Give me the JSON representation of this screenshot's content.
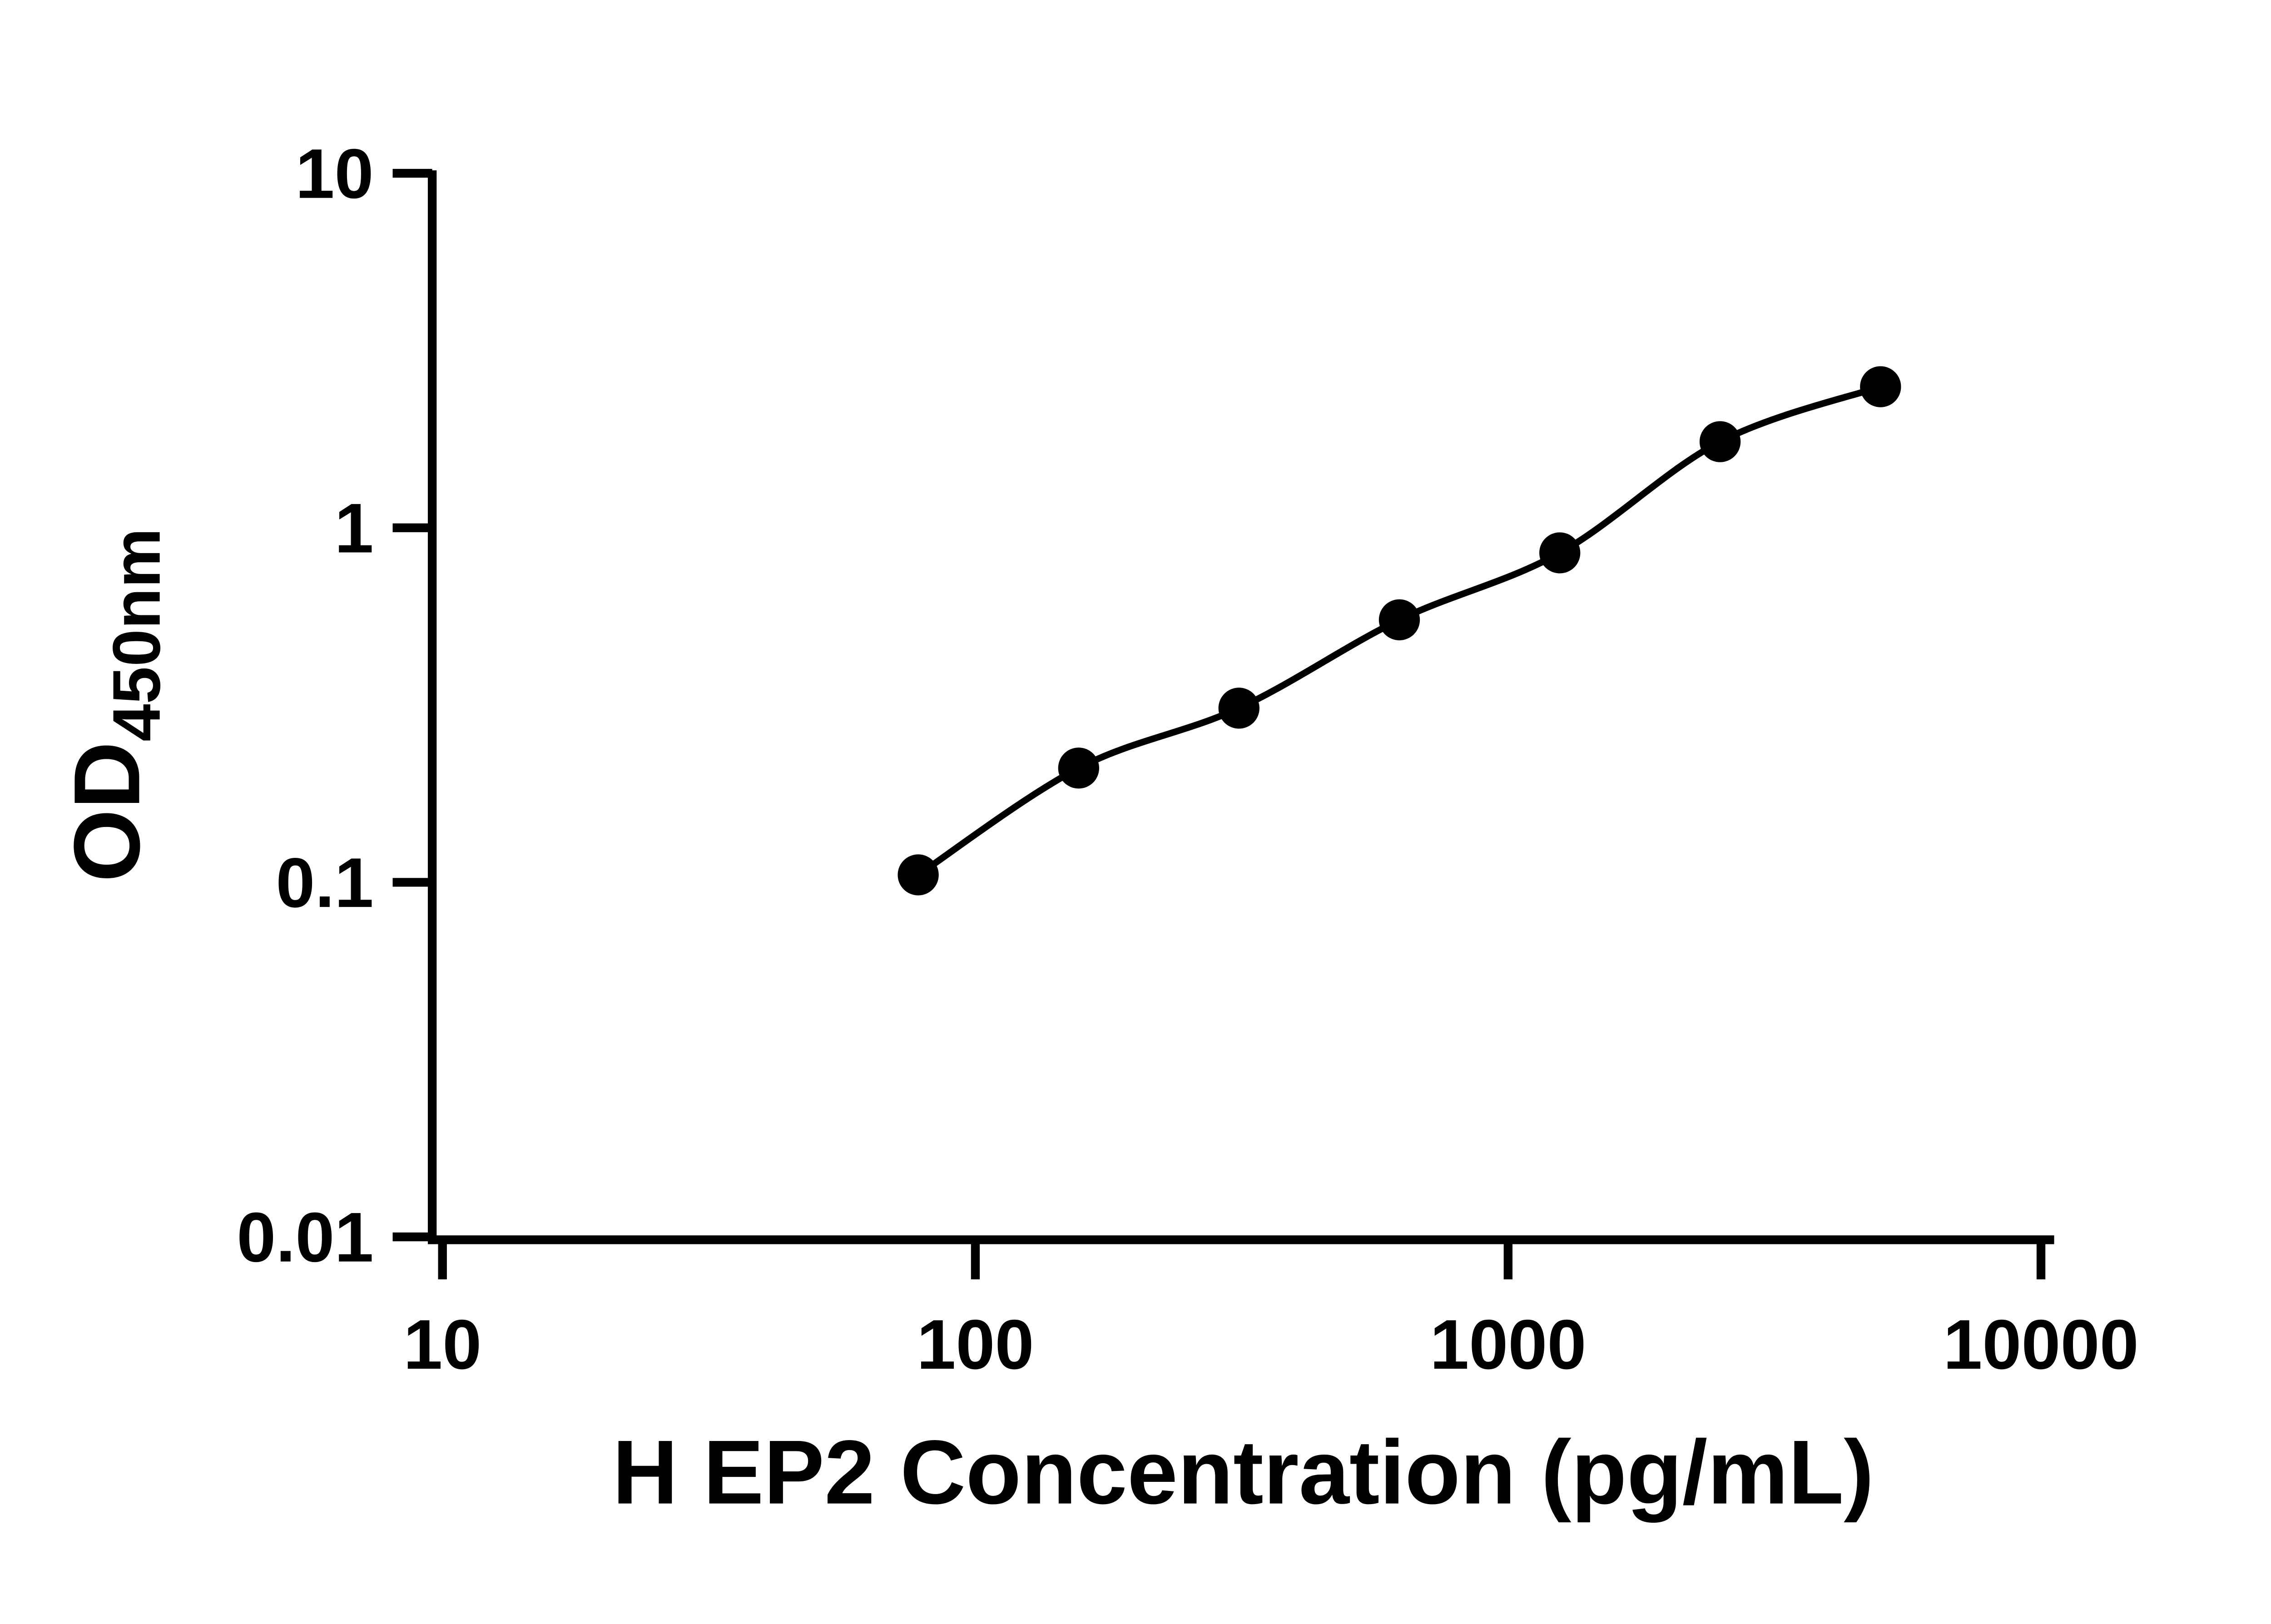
{
  "page": {
    "background": "#ffffff"
  },
  "chart_data": {
    "type": "scatter",
    "title": "",
    "xlabel": "H EP2 Concentration (pg/mL)",
    "ylabel_main": "OD",
    "ylabel_sub": "450nm",
    "x_scale": "log10",
    "y_scale": "log10",
    "xlim": [
      10,
      10000
    ],
    "ylim": [
      0.01,
      10
    ],
    "x_ticks": [
      "10",
      "100",
      "1000",
      "10000"
    ],
    "y_ticks": [
      "0.01",
      "0.1",
      "1",
      "10"
    ],
    "grid": false,
    "legend": false,
    "axis_color": "#000000",
    "marker_color": "#000000",
    "line_color": "#000000",
    "points": [
      {
        "x": 78.125,
        "y": 0.105
      },
      {
        "x": 156.25,
        "y": 0.21
      },
      {
        "x": 312.5,
        "y": 0.31
      },
      {
        "x": 625,
        "y": 0.55
      },
      {
        "x": 1250,
        "y": 0.85
      },
      {
        "x": 2500,
        "y": 1.75
      },
      {
        "x": 5000,
        "y": 2.5
      }
    ]
  }
}
